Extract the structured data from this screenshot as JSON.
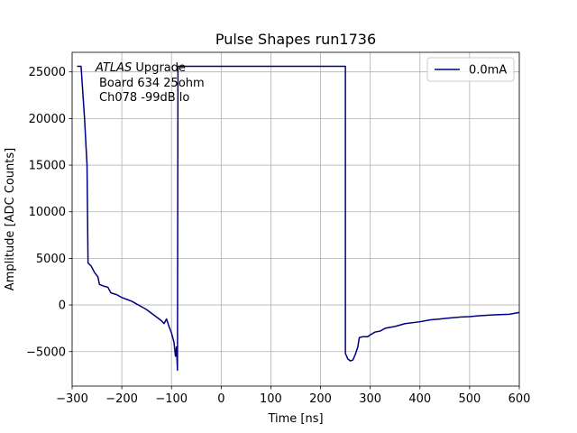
{
  "chart_data": {
    "type": "line",
    "title": "Pulse Shapes run1736",
    "xlabel": "Time [ns]",
    "ylabel": "Amplitude [ADC Counts]",
    "annotation": {
      "italic": "ATLAS",
      "rest": "Upgrade",
      "lines": [
        "Board 634 25ohm",
        "Ch078 -99dB lo"
      ]
    },
    "x": [
      -290,
      -282,
      -280,
      -275,
      -270,
      -268,
      -262,
      -255,
      -248,
      -245,
      -235,
      -228,
      -222,
      -210,
      -200,
      -190,
      -180,
      -170,
      -160,
      -150,
      -140,
      -130,
      -120,
      -115,
      -110,
      -105,
      -100,
      -95,
      -92,
      -90,
      -88,
      -87,
      250,
      250,
      255,
      260,
      265,
      270,
      275,
      278,
      285,
      295,
      300,
      310,
      320,
      330,
      350,
      370,
      400,
      420,
      440,
      460,
      480,
      500,
      520,
      550,
      580,
      600
    ],
    "series": [
      {
        "name": "0.0mA",
        "color": "#000080",
        "values": [
          25600,
          25600,
          24000,
          20000,
          15000,
          4500,
          4200,
          3500,
          3000,
          2200,
          2000,
          1900,
          1300,
          1100,
          800,
          600,
          400,
          100,
          -200,
          -500,
          -900,
          -1300,
          -1700,
          -2000,
          -1500,
          -2300,
          -3000,
          -4000,
          -5500,
          -4500,
          -7000,
          25600,
          25600,
          -5200,
          -5800,
          -6000,
          -5900,
          -5300,
          -4500,
          -3500,
          -3400,
          -3400,
          -3200,
          -2900,
          -2800,
          -2500,
          -2300,
          -2000,
          -1800,
          -1600,
          -1500,
          -1400,
          -1300,
          -1250,
          -1150,
          -1050,
          -1000,
          -800
        ]
      }
    ],
    "xlim": [
      -300,
      600
    ],
    "xticks": [
      {
        "value": -300,
        "label": "−300"
      },
      {
        "value": -200,
        "label": "−200"
      },
      {
        "value": -100,
        "label": "−100"
      },
      0,
      100,
      200,
      300,
      400,
      500,
      600
    ],
    "ylim": [
      -8700,
      27100
    ],
    "yticks": [
      {
        "value": -5000,
        "label": "−5000"
      },
      0,
      5000,
      10000,
      15000,
      20000,
      25000
    ],
    "grid": true,
    "legend": "upper right"
  }
}
